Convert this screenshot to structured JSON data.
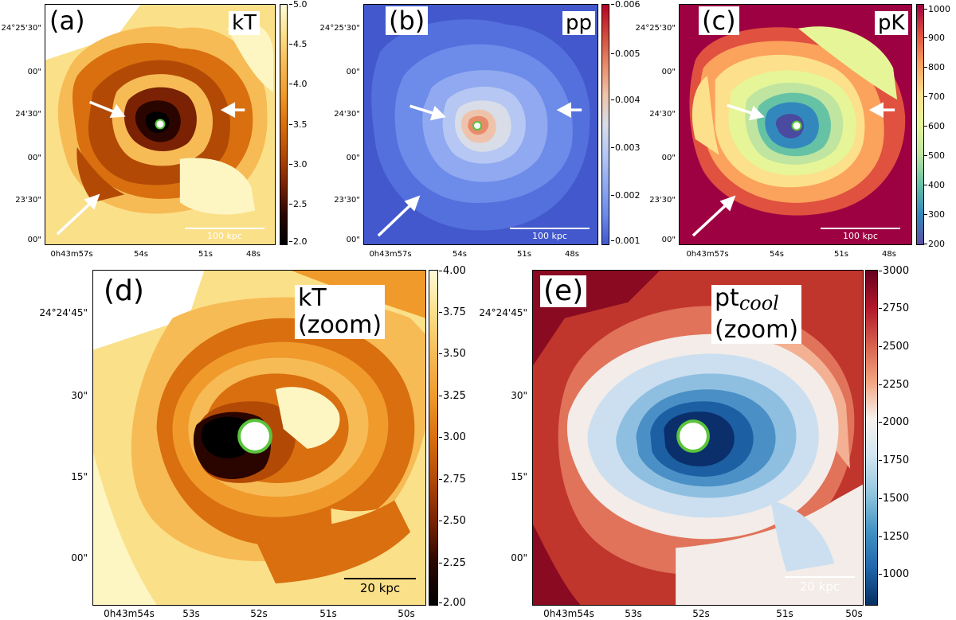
{
  "ra_label_prefix": "0h43m",
  "panels": {
    "a": {
      "letter": "(a)",
      "quantity": "kT",
      "colorbar_ticks": [
        "5.0",
        "4.5",
        "4.0",
        "3.5",
        "3.0",
        "2.5",
        "2.0"
      ],
      "dec_ticks": [
        "24°25'30\"",
        "00\"",
        "24'30\"",
        "00\"",
        "23'30\"",
        "00\""
      ],
      "ra_ticks": [
        "0h43m57s",
        "54s",
        "51s",
        "48s"
      ],
      "scale_label": "100 kpc",
      "colors": [
        "#fdf6c3",
        "#fbe08a",
        "#f7bb55",
        "#f09a2c",
        "#d96f0f",
        "#b24a06",
        "#7a2203",
        "#2a0500",
        "#000000"
      ]
    },
    "b": {
      "letter": "(b)",
      "quantity": "pp",
      "colorbar_ticks": [
        "0.006",
        "0.005",
        "0.004",
        "0.003",
        "0.002",
        "0.001"
      ],
      "dec_ticks": [
        "24°25'30\"",
        "00\"",
        "24'30\"",
        "00\"",
        "23'30\"",
        "00\""
      ],
      "ra_ticks": [
        "0h43m57s",
        "54s",
        "51s",
        "48s"
      ],
      "scale_label": "100 kpc",
      "colors": [
        "#4258cc",
        "#5370dd",
        "#6d8be8",
        "#90a9f0",
        "#b6c7f4",
        "#d8dde8",
        "#efc3ab",
        "#e88b6a",
        "#cf4a3c"
      ]
    },
    "c": {
      "letter": "(c)",
      "quantity": "pK",
      "colorbar_ticks": [
        "1000",
        "900",
        "800",
        "700",
        "600",
        "500",
        "400",
        "300",
        "200"
      ],
      "dec_ticks": [
        "24°25'30\"",
        "00\"",
        "24'30\"",
        "00\"",
        "23'30\"",
        "00\""
      ],
      "ra_ticks": [
        "0h43m57s",
        "54s",
        "51s",
        "48s"
      ],
      "scale_label": "100 kpc",
      "colors": [
        "#9e0142",
        "#e0513f",
        "#fba25d",
        "#fde08b",
        "#e6f598",
        "#bfe5a0",
        "#66c2a5",
        "#3288bd",
        "#4a4aa0"
      ]
    },
    "d": {
      "letter": "(d)",
      "quantity": "kT (zoom)",
      "colorbar_ticks": [
        "4.00",
        "3.75",
        "3.50",
        "3.25",
        "3.00",
        "2.75",
        "2.50",
        "2.25",
        "2.00"
      ],
      "dec_ticks": [
        "24°24'45\"",
        "30\"",
        "15\"",
        "00\""
      ],
      "ra_ticks": [
        "0h43m54s",
        "53s",
        "52s",
        "51s",
        "50s"
      ],
      "scale_label": "20 kpc",
      "colors": [
        "#fdf6c3",
        "#fbe08a",
        "#f7bb55",
        "#f09a2c",
        "#d96f0f",
        "#b24a06",
        "#7a2203",
        "#2a0500",
        "#000000"
      ]
    },
    "e": {
      "letter": "(e)",
      "quantity_main": "pt",
      "quantity_sub": "cool",
      "quantity_suffix": "(zoom)",
      "colorbar_ticks": [
        "3000",
        "2750",
        "2500",
        "2250",
        "2000",
        "1750",
        "1500",
        "1250",
        "1000"
      ],
      "dec_ticks": [
        "24°24'45\"",
        "30\"",
        "15\"",
        "00\""
      ],
      "ra_ticks": [
        "0h43m54s",
        "53s",
        "52s",
        "51s",
        "50s"
      ],
      "scale_label": "20 kpc",
      "colors": [
        "#8a0a22",
        "#c0352c",
        "#e0735a",
        "#f3b093",
        "#f3ece8",
        "#cbdff0",
        "#8fbfe0",
        "#4a90c6",
        "#1d5fa3",
        "#0a2f6b"
      ]
    }
  }
}
